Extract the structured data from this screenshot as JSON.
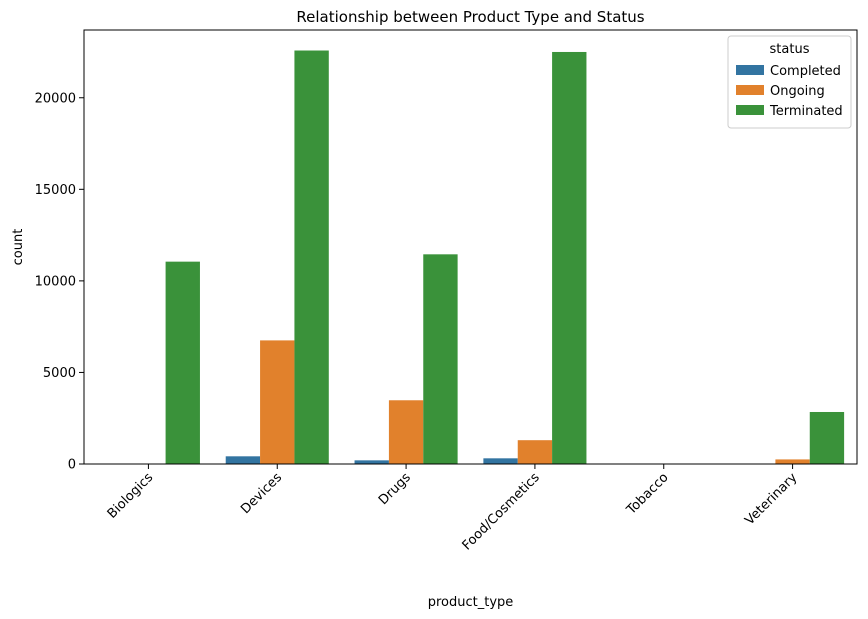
{
  "chart_data": {
    "type": "bar",
    "title": "Relationship between Product Type and Status",
    "xlabel": "product_type",
    "ylabel": "count",
    "categories": [
      "Biologics",
      "Devices",
      "Drugs",
      "Food/Cosmetics",
      "Tobacco",
      "Veterinary"
    ],
    "series": [
      {
        "name": "Completed",
        "color": "#3274a1",
        "values": [
          0,
          420,
          200,
          310,
          0,
          0
        ]
      },
      {
        "name": "Ongoing",
        "color": "#e1812c",
        "values": [
          0,
          6750,
          3480,
          1300,
          0,
          250
        ]
      },
      {
        "name": "Terminated",
        "color": "#3a923a",
        "values": [
          11050,
          22580,
          11450,
          22500,
          0,
          2840
        ]
      }
    ],
    "ylim": [
      0,
      23700
    ],
    "yticks": [
      0,
      5000,
      10000,
      15000,
      20000
    ],
    "grid": false,
    "legend": {
      "title": "status",
      "position": "top-right"
    }
  }
}
